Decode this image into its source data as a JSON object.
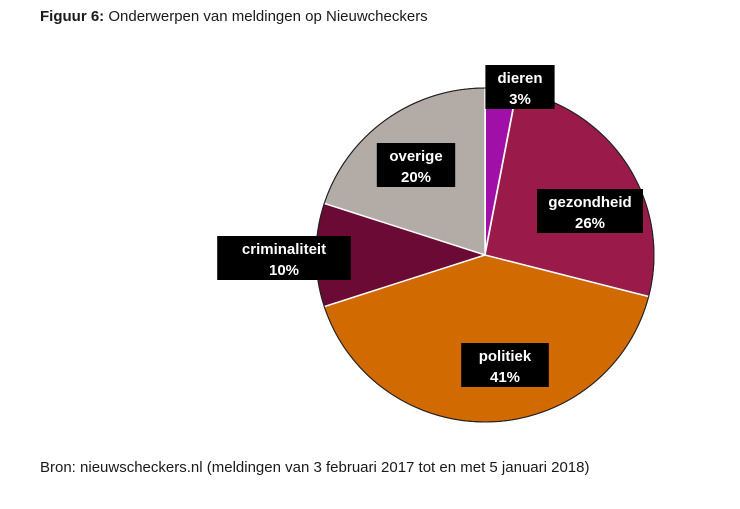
{
  "header": {
    "figure_label": "Figuur 6:",
    "title": "Onderwerpen van meldingen op Nieuwcheckers"
  },
  "footer": {
    "source": "Bron: nieuwscheckers.nl (meldingen van 3 februari 2017 tot en met 5 januari 2018)"
  },
  "chart_data": {
    "type": "pie",
    "title": "Onderwerpen van meldingen op Nieuwcheckers",
    "slices": [
      {
        "label": "dieren",
        "value_label": "3%",
        "value": 3,
        "color": "#a010a8"
      },
      {
        "label": "gezondheid",
        "value_label": "26%",
        "value": 26,
        "color": "#9a1b4a"
      },
      {
        "label": "politiek",
        "value_label": "41%",
        "value": 41,
        "color": "#d16a00"
      },
      {
        "label": "criminaliteit",
        "value_label": "10%",
        "value": 10,
        "color": "#6a0a35"
      },
      {
        "label": "overige",
        "value_label": "20%",
        "value": 20,
        "color": "#b3aba6"
      }
    ],
    "start_angle_deg": 0,
    "direction": "clockwise",
    "legend": "none",
    "label_style": "white bold text on black boxes"
  }
}
